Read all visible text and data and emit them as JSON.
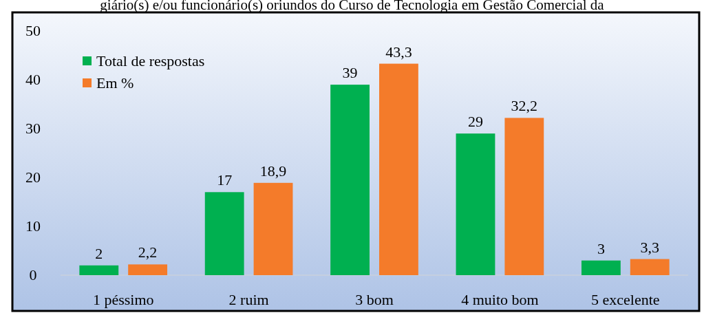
{
  "chart_data": {
    "type": "bar",
    "title": "giário(s) e/ou funcionário(s) oriundos do Curso de Tecnologia em Gestão Comercial da",
    "categories": [
      "1 péssimo",
      "2 ruim",
      "3 bom",
      "4 muito bom",
      "5 excelente"
    ],
    "series": [
      {
        "name": "Total de respostas",
        "color": "#00b050",
        "values": [
          2,
          17,
          39,
          29,
          3
        ],
        "value_labels": [
          "2",
          "17",
          "39",
          "29",
          "3"
        ]
      },
      {
        "name": "Em %",
        "color": "#f47b2a",
        "values": [
          2.2,
          18.9,
          43.3,
          32.2,
          3.3
        ],
        "value_labels": [
          "2,2",
          "18,9",
          "43,3",
          "32,2",
          "3,3"
        ]
      }
    ],
    "ylim": [
      0,
      50
    ],
    "yticks": [
      0,
      10,
      20,
      30,
      40,
      50
    ],
    "grid": false,
    "legend": "top left"
  }
}
